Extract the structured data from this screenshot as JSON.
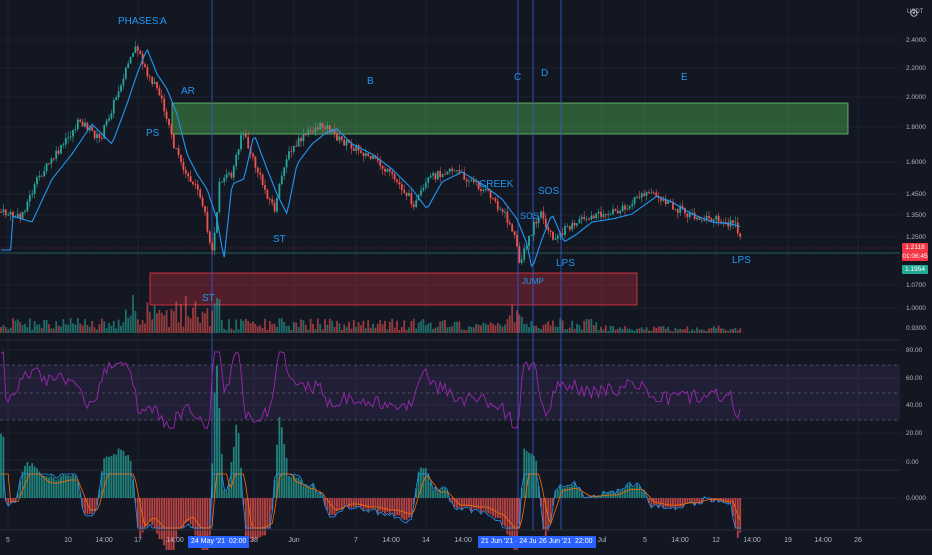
{
  "header": {
    "currency_label": "USDT"
  },
  "price_axis": {
    "ticks": [
      "2.4000",
      "2.2000",
      "2.0000",
      "1.8000",
      "1.6000",
      "1.4500",
      "1.3500",
      "1.2500",
      "1.0700",
      "1.0000",
      "0.9300"
    ],
    "tags": [
      {
        "text": "1.2118",
        "color": "#f23645"
      },
      {
        "text": "01:06:45",
        "color": "#f23645"
      },
      {
        "text": "1.1954",
        "color": "#22ab94"
      }
    ]
  },
  "rsi_axis": {
    "ticks": [
      "80.00",
      "60.00",
      "40.00",
      "20.00",
      "0.00"
    ]
  },
  "macd_axis": {
    "ticks": [
      "0.0000"
    ]
  },
  "time_axis": {
    "ticks": [
      "5",
      "10",
      "14:00",
      "17",
      "14:00",
      "28",
      "Jun",
      "7",
      "14:00",
      "14",
      "14:00",
      "Jul",
      "5",
      "14:00",
      "12",
      "14:00",
      "19",
      "14:00",
      "26"
    ],
    "crosshair_tags": [
      "24 May '21",
      "02:00",
      "21 Jun '21",
      "24 Jun '21",
      "26 Jun '21",
      "22:00"
    ]
  },
  "annotations": {
    "phases_title": "PHASES:",
    "phase_a": "A",
    "phase_b": "B",
    "phase_c": "C",
    "phase_d": "D",
    "phase_e": "E",
    "ps": "PS",
    "ar": "AR",
    "st1": "ST",
    "st2": "ST",
    "creek": "CREEK",
    "sos1": "SOS",
    "sos2": "SOS",
    "jump": "JUMP",
    "lps1": "LPS",
    "lps2": "LPS"
  },
  "colors": {
    "background": "#131722",
    "up": "#26a69a",
    "down": "#ef5350",
    "ma": "#2196f3",
    "rsi": "#9c27b0",
    "macd": "#2196f3",
    "signal": "#ff6d00",
    "zone_green": "#4caf50",
    "zone_red": "#f23645",
    "annotation": "#2196f3",
    "vline": "#3b5ad6"
  }
}
